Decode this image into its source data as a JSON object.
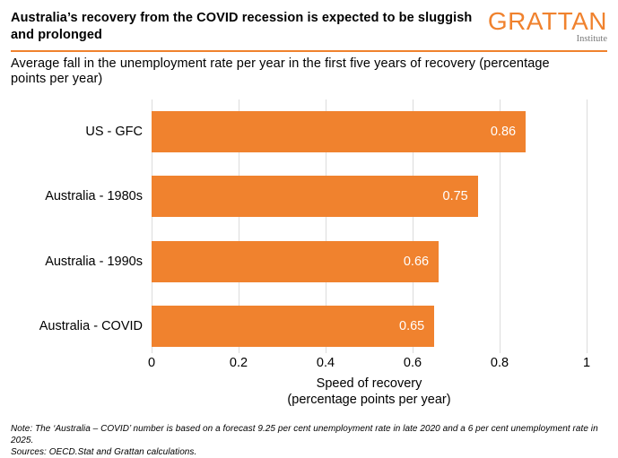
{
  "header": {
    "title": "Australia’s recovery from the COVID recession is expected to be sluggish and prolonged",
    "logo": {
      "wordmark": "GRATTAN",
      "subtext": "Institute"
    }
  },
  "subtitle": "Average fall in the unemployment rate per year in the first five years of recovery (percentage points per year)",
  "chart_data": {
    "type": "bar",
    "orientation": "horizontal",
    "categories": [
      "US - GFC",
      "Australia - 1980s",
      "Australia - 1990s",
      "Australia - COVID"
    ],
    "values": [
      0.86,
      0.75,
      0.66,
      0.65
    ],
    "value_labels": [
      "0.86",
      "0.75",
      "0.66",
      "0.65"
    ],
    "title": "",
    "xlabel": "Speed of recovery\n(percentage points per year)",
    "ylabel": "",
    "xlim": [
      0,
      1
    ],
    "xticks": [
      0,
      0.2,
      0.4,
      0.6,
      0.8,
      1
    ],
    "xtick_labels": [
      "0",
      "0.2",
      "0.4",
      "0.6",
      "0.8",
      "1"
    ],
    "grid": true,
    "legend": "none",
    "bar_color": "#F0822E",
    "value_label_color": "#FFFFFF",
    "gridline_color": "#DCDCDC"
  },
  "footer": {
    "note": "Note: The ‘Australia – COVID’ number is based on a forecast 9.25 per cent unemployment rate in late 2020 and a 6 per cent unemployment rate in 2025.",
    "sources": "Sources: OECD.Stat and Grattan calculations."
  }
}
